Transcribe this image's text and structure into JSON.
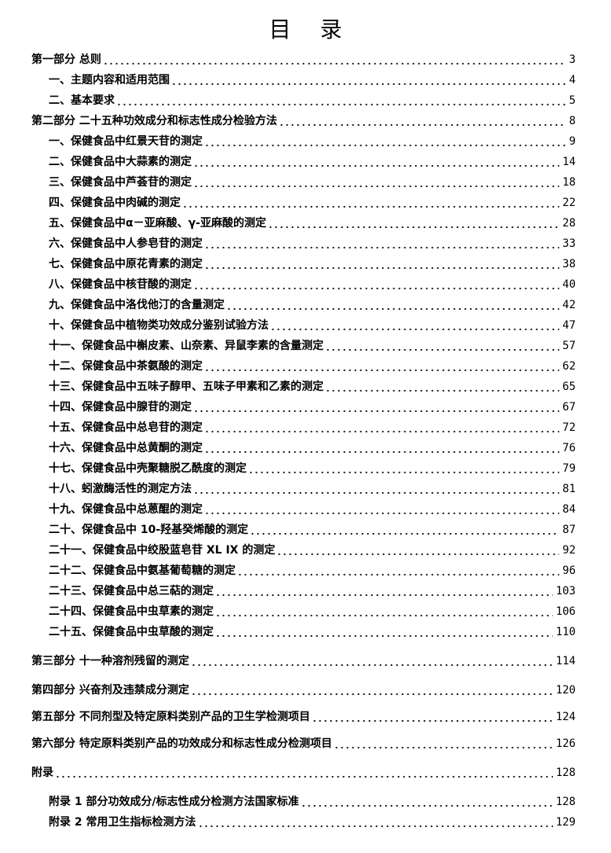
{
  "title": "目 录",
  "entries": [
    {
      "label": "第一部分 总则",
      "page": "3",
      "level": 1
    },
    {
      "label": "一、主题内容和适用范围",
      "page": "4",
      "level": 2
    },
    {
      "label": "二、基本要求",
      "page": "5",
      "level": 2
    },
    {
      "label": "第二部分 二十五种功效成分和标志性成分检验方法",
      "page": "8",
      "level": 1
    },
    {
      "label": "一、保健食品中红景天苷的测定",
      "page": "9",
      "level": 2
    },
    {
      "label": "二、保健食品中大蒜素的测定",
      "page": "14",
      "level": 2
    },
    {
      "label": "三、保健食品中芦荟苷的测定",
      "page": "18",
      "level": 2
    },
    {
      "label": "四、保健食品中肉碱的测定",
      "page": "22",
      "level": 2
    },
    {
      "label": "五、保健食品中α－亚麻酸、γ-亚麻酸的测定",
      "page": "28",
      "level": 2
    },
    {
      "label": "六、保健食品中人参皂苷的测定",
      "page": "33",
      "level": 2
    },
    {
      "label": "七、保健食品中原花青素的测定",
      "page": "38",
      "level": 2
    },
    {
      "label": "八、保健食品中核苷酸的测定",
      "page": "40",
      "level": 2
    },
    {
      "label": "九、保健食品中洛伐他汀的含量测定",
      "page": "42",
      "level": 2
    },
    {
      "label": "十、保健食品中植物类功效成分鉴别试验方法",
      "page": "47",
      "level": 2
    },
    {
      "label": "十一、保健食品中槲皮素、山奈素、异鼠李素的含量测定",
      "page": "57",
      "level": 2
    },
    {
      "label": "十二、保健食品中茶氨酸的测定",
      "page": "62",
      "level": 2
    },
    {
      "label": "十三、保健食品中五味子醇甲、五味子甲素和乙素的测定",
      "page": "65",
      "level": 2
    },
    {
      "label": "十四、保健食品中腺苷的测定",
      "page": "67",
      "level": 2
    },
    {
      "label": "十五、保健食品中总皂苷的测定",
      "page": "72",
      "level": 2
    },
    {
      "label": "十六、保健食品中总黄酮的测定",
      "page": "76",
      "level": 2
    },
    {
      "label": "十七、保健食品中壳聚糖脱乙酰度的测定",
      "page": "79",
      "level": 2
    },
    {
      "label": "十八、蚓激酶活性的测定方法",
      "page": "81",
      "level": 2
    },
    {
      "label": "十九、保健食品中总蒽醌的测定",
      "page": "84",
      "level": 2
    },
    {
      "label": "二十、保健食品中 10-羟基癸烯酸的测定",
      "page": "87",
      "level": 2
    },
    {
      "label": "二十一、保健食品中绞股蓝皂苷 XL IX 的测定",
      "page": "92",
      "level": 2
    },
    {
      "label": "二十二、保健食品中氨基葡萄糖的测定",
      "page": "96",
      "level": 2
    },
    {
      "label": "二十三、保健食品中总三萜的测定",
      "page": "103",
      "level": 2
    },
    {
      "label": "二十四、保健食品中虫草素的测定",
      "page": "106",
      "level": 2
    },
    {
      "label": "二十五、保健食品中虫草酸的测定",
      "page": "110",
      "level": 2
    },
    {
      "label": "第三部分 十一种溶剂残留的测定",
      "page": "114",
      "level": 1
    },
    {
      "label": "第四部分 兴奋剂及违禁成分测定",
      "page": "120",
      "level": 1
    },
    {
      "label": "第五部分 不同剂型及特定原料类别产品的卫生学检测项目",
      "page": "124",
      "level": 1
    },
    {
      "label": "第六部分 特定原料类别产品的功效成分和标志性成分检测项目",
      "page": "126",
      "level": 1
    },
    {
      "label": "附录",
      "page": "128",
      "level": 1
    },
    {
      "label": "附录 1  部分功效成分/标志性成分检测方法国家标准",
      "page": "128",
      "level": 2
    },
    {
      "label": "附录 2  常用卫生指标检测方法",
      "page": "129",
      "level": 2
    }
  ]
}
